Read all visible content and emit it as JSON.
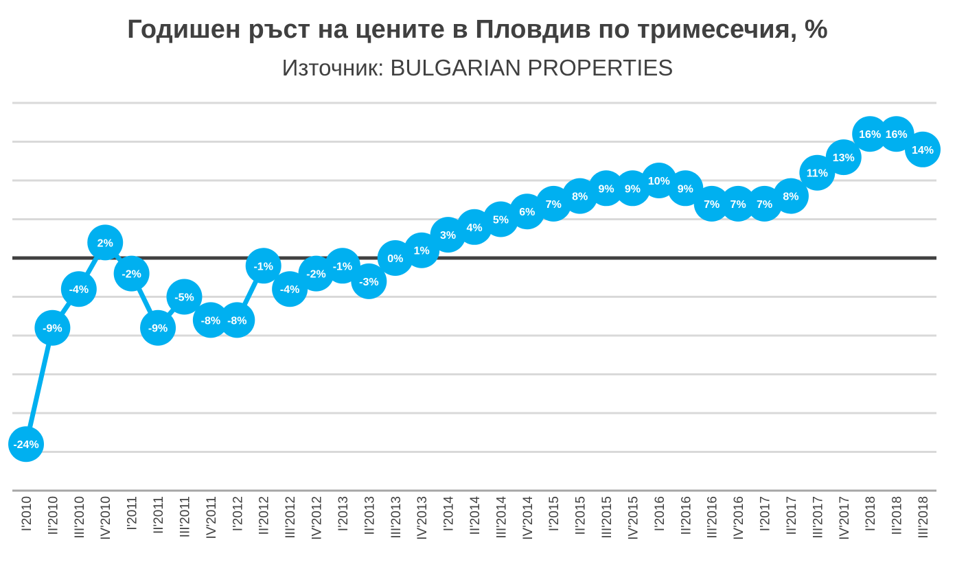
{
  "chart_data": {
    "type": "line",
    "title": "Годишен ръст на цените в Пловдив по тримесечия, %",
    "subtitle": "Източник: BULGARIAN PROPERTIES",
    "categories": [
      "I'2010",
      "II'2010",
      "III'2010",
      "IV'2010",
      "I'2011",
      "II'2011",
      "III'2011",
      "IV'2011",
      "I'2012",
      "II'2012",
      "III'2012",
      "IV'2012",
      "I'2013",
      "II'2013",
      "III'2013",
      "IV'2013",
      "I'2014",
      "II'2014",
      "III'2014",
      "IV'2014",
      "I'2015",
      "II'2015",
      "III'2015",
      "IV'2015",
      "I'2016",
      "II'2016",
      "III'2016",
      "IV'2016",
      "I'2017",
      "II'2017",
      "III'2017",
      "IV'2017",
      "I'2018",
      "II'2018",
      "III'2018"
    ],
    "values": [
      -24,
      -9,
      -4,
      2,
      -2,
      -9,
      -5,
      -8,
      -8,
      -1,
      -4,
      -2,
      -1,
      -3,
      0,
      1,
      3,
      4,
      5,
      6,
      7,
      8,
      9,
      9,
      10,
      9,
      7,
      7,
      7,
      8,
      11,
      13,
      16,
      16,
      14
    ],
    "labels": [
      "-24%",
      "-9%",
      "-4%",
      "2%",
      "-2%",
      "-9%",
      "-5%",
      "-8%",
      "-8%",
      "-1%",
      "-4%",
      "-2%",
      "-1%",
      "-3%",
      "0%",
      "1%",
      "3%",
      "4%",
      "5%",
      "6%",
      "7%",
      "8%",
      "9%",
      "9%",
      "10%",
      "9%",
      "7%",
      "7%",
      "7%",
      "8%",
      "11%",
      "13%",
      "16%",
      "16%",
      "14%"
    ],
    "ylim": [
      -30,
      20
    ],
    "grid": true,
    "y_tick_labels_shown": false,
    "colors": {
      "series": "#00B0F0",
      "zero_line": "#404040",
      "grid": "#D9D9D9",
      "text": "#404040"
    }
  }
}
